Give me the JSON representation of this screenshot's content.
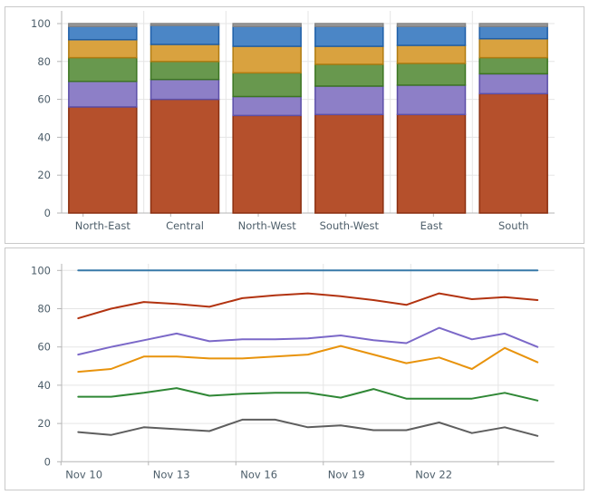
{
  "chart_data": [
    {
      "type": "bar",
      "stacked": true,
      "title": "",
      "legend": "none",
      "grid": true,
      "categories": [
        "North-East",
        "Central",
        "North-West",
        "South-West",
        "East",
        "South"
      ],
      "yticks": [
        0,
        20,
        40,
        60,
        80,
        100
      ],
      "ylim": [
        0,
        100
      ],
      "series": [
        {
          "name": "series-brown",
          "color": "#b5502c",
          "border_color": "#8a2f10",
          "values": [
            56,
            60,
            51.5,
            52,
            52,
            63
          ]
        },
        {
          "name": "series-purple",
          "color": "#8d7fc7",
          "border_color": "#5c4fa8",
          "values": [
            13.5,
            10.5,
            10,
            15,
            15.5,
            10.5
          ]
        },
        {
          "name": "series-green",
          "color": "#68984e",
          "border_color": "#3c7522",
          "values": [
            12.5,
            9.5,
            12.5,
            11.5,
            11.5,
            8.5
          ]
        },
        {
          "name": "series-orange",
          "color": "#d9a23f",
          "border_color": "#b07c12",
          "values": [
            9.5,
            9,
            14,
            9.5,
            9.5,
            10
          ]
        },
        {
          "name": "series-blue",
          "color": "#4b86c6",
          "border_color": "#1f5fa8",
          "values": [
            7,
            10,
            10.5,
            10.5,
            10,
            6.5
          ]
        },
        {
          "name": "series-gray",
          "color": "#9c9c9c",
          "border_color": "#848484",
          "values": [
            1.5,
            1,
            1.5,
            1.5,
            1.5,
            1.5
          ]
        }
      ]
    },
    {
      "type": "line",
      "title": "",
      "legend": "none",
      "grid": true,
      "num_points": 15,
      "x_tick_labels": [
        "Nov 10",
        "Nov 13",
        "Nov 16",
        "Nov 19",
        "Nov 22"
      ],
      "yticks": [
        0,
        20,
        40,
        60,
        80,
        100
      ],
      "ylim": [
        0,
        100
      ],
      "series": [
        {
          "name": "series-blue",
          "color": "#3779a8",
          "values": [
            100,
            100,
            100,
            100,
            100,
            100,
            100,
            100,
            100,
            100,
            100,
            100,
            100,
            100,
            100
          ]
        },
        {
          "name": "series-red",
          "color": "#b23310",
          "values": [
            75,
            80,
            83.5,
            82.5,
            81,
            85.5,
            87,
            88,
            86.5,
            84.5,
            82,
            88,
            85,
            86,
            84.5
          ]
        },
        {
          "name": "series-purple",
          "color": "#7b68c8",
          "values": [
            56,
            60,
            63.5,
            67,
            63,
            64,
            64,
            64.5,
            66,
            63.5,
            62,
            70,
            64,
            67,
            60
          ]
        },
        {
          "name": "series-orange",
          "color": "#e8930c",
          "values": [
            47,
            48.5,
            55,
            55,
            54,
            54,
            55,
            56,
            60.5,
            56,
            51.5,
            54.5,
            48.5,
            59.5,
            52
          ]
        },
        {
          "name": "series-green",
          "color": "#2f8735",
          "values": [
            34,
            34,
            36,
            38.5,
            34.5,
            35.5,
            36,
            36,
            33.5,
            38,
            33,
            33,
            33,
            36,
            32
          ]
        },
        {
          "name": "series-gray",
          "color": "#5e5e5e",
          "values": [
            15.5,
            14,
            18,
            17,
            16,
            22,
            22,
            18,
            19,
            16.5,
            16.5,
            20.5,
            15,
            18,
            13.5
          ]
        }
      ]
    }
  ],
  "style": {
    "label_color": "#4d5e6a",
    "grid_color": "#e5e5e5",
    "axis_color": "#b5b5b5",
    "frame_color": "#c9c9c9",
    "background": "#ffffff"
  }
}
